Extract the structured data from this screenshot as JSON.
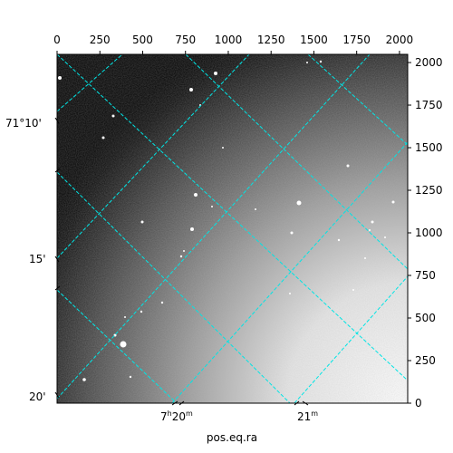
{
  "figure": {
    "xlabel": "pos.eq.ra",
    "top_ticks": [
      "0",
      "250",
      "500",
      "750",
      "1000",
      "1250",
      "1500",
      "1750",
      "2000"
    ],
    "right_ticks": [
      "0",
      "250",
      "500",
      "750",
      "1000",
      "1250",
      "1500",
      "1750",
      "2000"
    ],
    "left_ticks": [
      "71°10'",
      "15'",
      "20'"
    ],
    "bottom_ticks": [
      {
        "main": "7",
        "sup1": "h",
        "mid": "20",
        "sup2": "m"
      },
      {
        "main": "21",
        "sup1": "m",
        "mid": "",
        "sup2": ""
      }
    ],
    "grid_color": "#00e5e5",
    "image_colormap": "gray"
  }
}
